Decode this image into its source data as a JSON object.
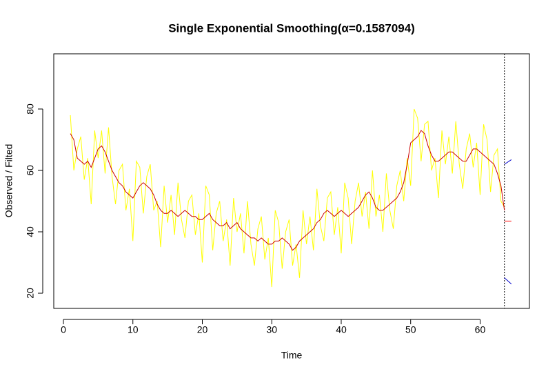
{
  "chart_data": {
    "type": "line",
    "title": "Single Exponential Smoothing(α=0.1587094)",
    "x_label": "Time",
    "y_label": "Observed / Filted",
    "xlim": [
      -1.39,
      67.1
    ],
    "ylim": [
      15.06,
      97.98
    ],
    "xticks": [
      0,
      10,
      20,
      30,
      40,
      50,
      60
    ],
    "yticks": [
      20,
      40,
      60,
      80
    ],
    "vline_x": 63.5,
    "series": [
      {
        "color": "#ffff00",
        "x": [
          1,
          1.5,
          2,
          2.5,
          3,
          3.5,
          4,
          4.5,
          5,
          5.5,
          6,
          6.5,
          7,
          7.5,
          8,
          8.5,
          9,
          9.5,
          10,
          10.5,
          11,
          11.5,
          12,
          12.5,
          13,
          13.5,
          14,
          14.5,
          15,
          15.5,
          16,
          16.5,
          17,
          17.5,
          18,
          18.5,
          19,
          19.5,
          20,
          20.5,
          21,
          21.5,
          22,
          22.5,
          23,
          23.5,
          24,
          24.5,
          25,
          25.5,
          26,
          26.5,
          27,
          27.5,
          28,
          28.5,
          29,
          29.5,
          30,
          30.5,
          31,
          31.5,
          32,
          32.5,
          33,
          33.5,
          34,
          34.5,
          35,
          35.5,
          36,
          36.5,
          37,
          37.5,
          38,
          38.5,
          39,
          39.5,
          40,
          40.5,
          41,
          41.5,
          42,
          42.5,
          43,
          43.5,
          44,
          44.5,
          45,
          45.5,
          46,
          46.5,
          47,
          47.5,
          48,
          48.5,
          49,
          49.5,
          50,
          50.5,
          51,
          51.5,
          52,
          52.5,
          53,
          53.5,
          54,
          54.5,
          55,
          55.5,
          56,
          56.5,
          57,
          57.5,
          58,
          58.5,
          59,
          59.5,
          60,
          60.5,
          61,
          61.5,
          62,
          62.5,
          63,
          63.5
        ],
        "values": [
          78,
          60,
          67,
          71,
          57,
          64,
          49,
          73,
          64,
          73,
          59,
          74,
          58,
          49,
          60,
          62,
          47,
          54,
          37,
          63,
          61,
          46,
          58,
          62,
          47,
          50,
          35,
          55,
          43,
          52,
          39,
          56,
          44,
          38,
          50,
          52,
          39,
          46,
          30,
          55,
          52,
          34,
          46,
          50,
          37,
          44,
          29,
          51,
          40,
          46,
          33,
          50,
          36,
          29,
          41,
          45,
          31,
          38,
          22,
          47,
          43,
          28,
          40,
          44,
          29,
          36,
          25,
          47,
          36,
          45,
          34,
          54,
          42,
          37,
          51,
          53,
          39,
          48,
          33,
          56,
          51,
          36,
          50,
          56,
          45,
          53,
          41,
          60,
          45,
          52,
          40,
          59,
          47,
          41,
          55,
          60,
          50,
          64,
          55,
          80,
          77,
          63,
          75,
          76,
          60,
          64,
          51,
          73,
          62,
          71,
          59,
          76,
          62,
          54,
          67,
          72,
          61,
          69,
          52,
          75,
          70,
          53,
          65,
          67,
          50,
          48
        ]
      },
      {
        "color": "#cc0000",
        "x": [
          1,
          1.5,
          2,
          2.5,
          3,
          3.5,
          4,
          4.5,
          5,
          5.5,
          6,
          6.5,
          7,
          7.5,
          8,
          8.5,
          9,
          9.5,
          10,
          10.5,
          11,
          11.5,
          12,
          12.5,
          13,
          13.5,
          14,
          14.5,
          15,
          15.5,
          16,
          16.5,
          17,
          17.5,
          18,
          18.5,
          19,
          19.5,
          20,
          20.5,
          21,
          21.5,
          22,
          22.5,
          23,
          23.5,
          24,
          24.5,
          25,
          25.5,
          26,
          26.5,
          27,
          27.5,
          28,
          28.5,
          29,
          29.5,
          30,
          30.5,
          31,
          31.5,
          32,
          32.5,
          33,
          33.5,
          34,
          34.5,
          35,
          35.5,
          36,
          36.5,
          37,
          37.5,
          38,
          38.5,
          39,
          39.5,
          40,
          40.5,
          41,
          41.5,
          42,
          42.5,
          43,
          43.5,
          44,
          44.5,
          45,
          45.5,
          46,
          46.5,
          47,
          47.5,
          48,
          48.5,
          49,
          49.5,
          50,
          50.5,
          51,
          51.5,
          52,
          52.5,
          53,
          53.5,
          54,
          54.5,
          55,
          55.5,
          56,
          56.5,
          57,
          57.5,
          58,
          58.5,
          59,
          59.5,
          60,
          60.5,
          61,
          61.5,
          62,
          62.5,
          63,
          63.5
        ],
        "values": [
          72,
          70,
          64,
          63,
          62,
          63,
          61,
          64,
          67,
          68,
          66,
          63,
          60,
          58,
          56,
          55,
          53,
          52,
          51,
          53,
          55,
          56,
          55,
          54,
          52,
          49,
          47,
          46,
          46,
          47,
          46,
          45,
          46,
          47,
          46,
          45,
          45,
          44,
          44,
          45,
          46,
          44,
          43,
          42,
          42,
          43,
          41,
          42,
          43,
          41,
          40,
          39,
          38,
          38,
          37,
          38,
          37,
          36,
          36,
          37,
          37,
          38,
          37,
          36,
          34,
          35,
          37,
          38,
          39,
          40,
          41,
          43,
          44,
          46,
          47,
          46,
          45,
          46,
          47,
          46,
          45,
          46,
          47,
          48,
          50,
          52,
          53,
          51,
          48,
          47,
          47,
          48,
          49,
          50,
          51,
          53,
          56,
          62,
          69,
          70,
          71,
          73,
          72,
          68,
          65,
          63,
          63,
          64,
          65,
          66,
          66,
          65,
          64,
          63,
          63,
          65,
          67,
          67,
          66,
          65,
          64,
          63,
          62,
          59,
          55,
          47
        ]
      },
      {
        "color": "#ff0000",
        "x": [
          63.5,
          64.5
        ],
        "values": [
          43.5,
          43.5
        ]
      },
      {
        "color": "#0000cc",
        "x": [
          63.5,
          64.5
        ],
        "values": [
          62,
          63.5
        ]
      },
      {
        "color": "#0000cc",
        "x": [
          63.5,
          64.5
        ],
        "values": [
          25,
          23
        ]
      }
    ]
  }
}
